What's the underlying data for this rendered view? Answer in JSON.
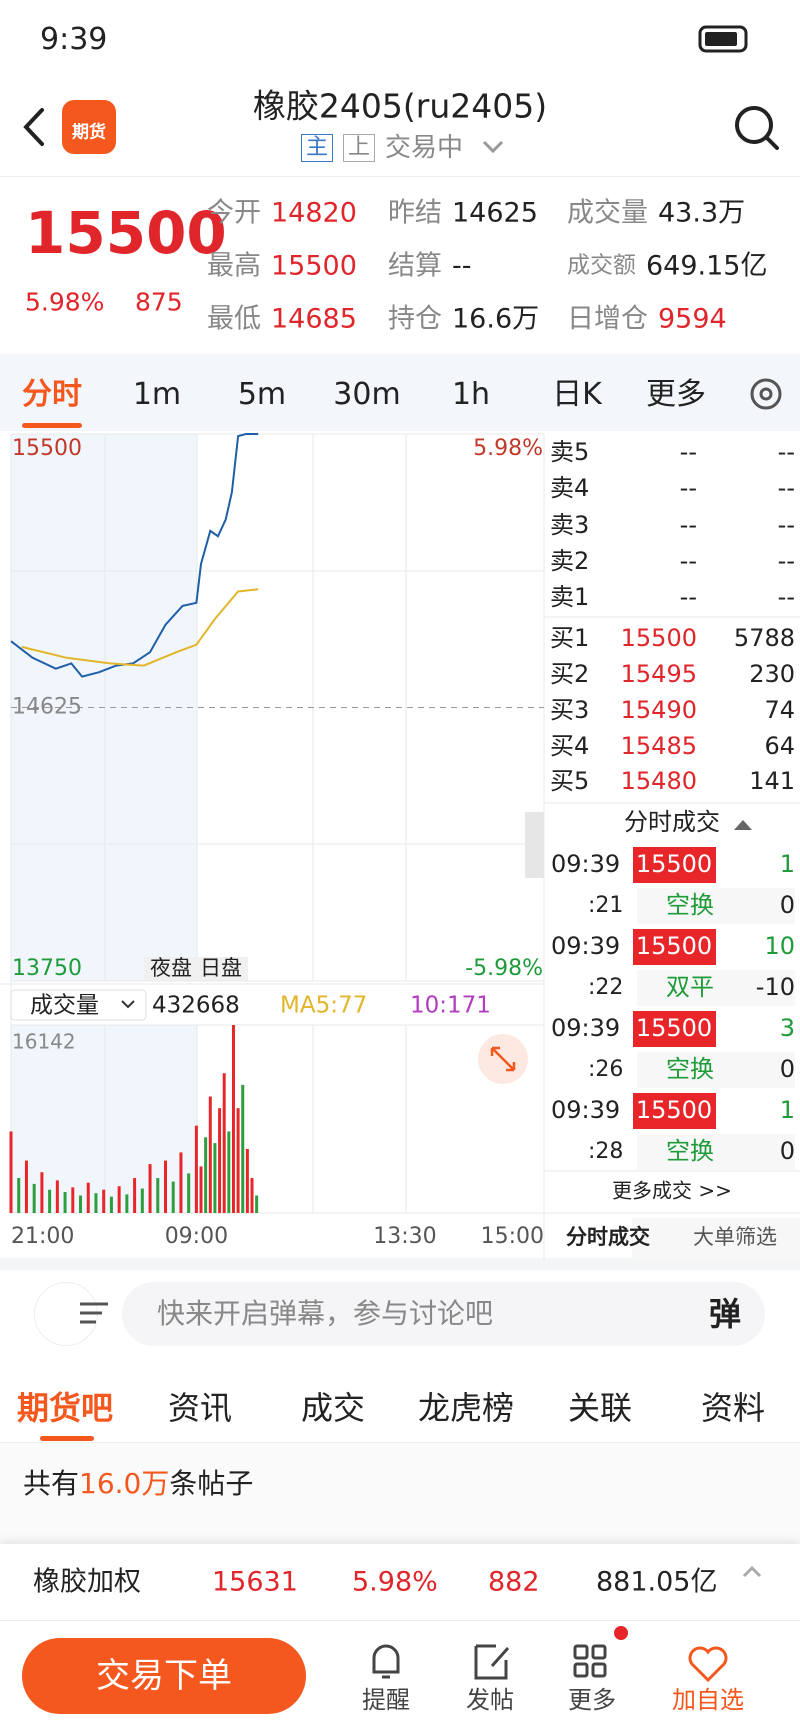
{
  "status_bar": {
    "time": "9:39"
  },
  "header": {
    "logo": "期货",
    "title": "橡胶2405(ru2405)",
    "tags": [
      "主",
      "上"
    ],
    "status": "交易中"
  },
  "quote": {
    "price": "15500",
    "change_pct": "5.98%",
    "change": "875",
    "stats": [
      [
        "今开",
        "14820"
      ],
      [
        "昨结",
        "14625"
      ],
      [
        "成交量",
        "43.3万"
      ],
      [
        "最高",
        "15500"
      ],
      [
        "结算",
        "--"
      ],
      [
        "成交额",
        "649.15亿"
      ],
      [
        "最低",
        "14685"
      ],
      [
        "持仓",
        "16.6万"
      ],
      [
        "日增仓",
        "9594"
      ]
    ]
  },
  "period_tabs": [
    "分时",
    "1m",
    "5m",
    "30m",
    "1h",
    "日K",
    "更多"
  ],
  "chart_data": [
    {
      "type": "line",
      "series": [
        {
          "color": "#1f5fa6",
          "x": [
            0,
            14,
            29,
            39,
            46,
            57,
            68,
            79,
            90,
            100,
            111,
            120,
            123,
            129,
            134,
            139,
            143,
            147,
            152,
            160
          ],
          "values": [
            14837,
            14784,
            14749,
            14766,
            14724,
            14738,
            14759,
            14766,
            14802,
            14890,
            14950,
            14960,
            15084,
            15190,
            15173,
            15226,
            15314,
            15493,
            15500,
            15500
          ]
        },
        {
          "color": "#e3b52a",
          "x": [
            7,
            36,
            64,
            86,
            107,
            120,
            132,
            147,
            160
          ],
          "values": [
            14819,
            14784,
            14766,
            14759,
            14802,
            14826,
            14908,
            14996,
            15003
          ]
        }
      ],
      "xlim": [
        0,
        345
      ],
      "ylim": [
        13750,
        15500
      ],
      "yticks": [
        13750,
        14625,
        15500
      ],
      "y2lim": [
        -5.98,
        5.98
      ],
      "y2ticks": [
        {
          "value": -5.98,
          "label": "-5.98%"
        },
        {
          "value": 5.98,
          "label": "5.98%"
        }
      ],
      "annotations": [
        "夜盘",
        "日盘"
      ]
    },
    {
      "type": "bar",
      "x": [
        0,
        5,
        10,
        15,
        20,
        25,
        30,
        35,
        40,
        45,
        50,
        55,
        60,
        65,
        70,
        75,
        80,
        85,
        90,
        95,
        100,
        105,
        110,
        115,
        120,
        123,
        126,
        129,
        132,
        135,
        138,
        141,
        144,
        147,
        150,
        153,
        156,
        159
      ],
      "values": [
        7000,
        3000,
        4500,
        2500,
        3500,
        2000,
        2800,
        1800,
        2200,
        1500,
        2600,
        1700,
        2000,
        1400,
        2300,
        1600,
        3000,
        2100,
        4200,
        3000,
        4500,
        2700,
        5200,
        3400,
        7500,
        4000,
        6500,
        10000,
        6000,
        9000,
        12000,
        7000,
        16142,
        9000,
        11000,
        5500,
        3000,
        1500
      ],
      "colors": [
        "#e8262a",
        "#2e9d3e",
        "#e8262a",
        "#2e9d3e",
        "#e8262a",
        "#2e9d3e",
        "#e8262a",
        "#2e9d3e",
        "#e8262a",
        "#2e9d3e",
        "#e8262a",
        "#2e9d3e",
        "#e8262a",
        "#2e9d3e",
        "#e8262a",
        "#2e9d3e",
        "#e8262a",
        "#2e9d3e",
        "#e8262a",
        "#2e9d3e",
        "#e8262a",
        "#2e9d3e",
        "#e8262a",
        "#2e9d3e",
        "#e8262a",
        "#e8262a",
        "#2e9d3e",
        "#e8262a",
        "#2e9d3e",
        "#e8262a",
        "#e8262a",
        "#2e9d3e",
        "#e8262a",
        "#e8262a",
        "#2e9d3e",
        "#e8262a",
        "#e8262a",
        "#2e9d3e"
      ],
      "xlim": [
        0,
        345
      ],
      "ylim": [
        0,
        16142
      ],
      "yticks": [
        16142
      ],
      "xticks": [
        {
          "value": 0,
          "label": "21:00"
        },
        {
          "value": 120,
          "label": "09:00"
        },
        {
          "value": 255,
          "label": "13:30"
        },
        {
          "value": 345,
          "label": "15:00"
        }
      ]
    }
  ],
  "volume_header": {
    "indicator": "成交量",
    "total": "432668",
    "ma5": "MA5:77",
    "ma10": "10:171"
  },
  "order_book": {
    "asks": [
      [
        "卖5",
        "--",
        "--"
      ],
      [
        "卖4",
        "--",
        "--"
      ],
      [
        "卖3",
        "--",
        "--"
      ],
      [
        "卖2",
        "--",
        "--"
      ],
      [
        "卖1",
        "--",
        "--"
      ]
    ],
    "bids": [
      [
        "买1",
        "15500",
        "5788"
      ],
      [
        "买2",
        "15495",
        "230"
      ],
      [
        "买3",
        "15490",
        "74"
      ],
      [
        "买4",
        "15485",
        "64"
      ],
      [
        "买5",
        "15480",
        "141"
      ]
    ]
  },
  "trades": {
    "title": "分时成交",
    "rows": [
      {
        "time": "09:39",
        "second": ":21",
        "price": "15500",
        "volume": "1",
        "kind": "空换",
        "change": "0"
      },
      {
        "time": "09:39",
        "second": ":22",
        "price": "15500",
        "volume": "10",
        "kind": "双平",
        "change": "-10"
      },
      {
        "time": "09:39",
        "second": ":26",
        "price": "15500",
        "volume": "3",
        "kind": "空换",
        "change": "0"
      },
      {
        "time": "09:39",
        "second": ":28",
        "price": "15500",
        "volume": "1",
        "kind": "空换",
        "change": "0"
      }
    ],
    "more": "更多成交 >>",
    "tabs": [
      "分时成交",
      "大单筛选"
    ]
  },
  "comment": {
    "placeholder": "快来开启弹幕，参与讨论吧",
    "button": "弹"
  },
  "section_tabs": [
    "期货吧",
    "资讯",
    "成交",
    "龙虎榜",
    "关联",
    "资料"
  ],
  "posts": {
    "prefix": "共有",
    "count": "16.0万",
    "suffix": "条帖子"
  },
  "index_bar": {
    "name": "橡胶加权",
    "price": "15631",
    "change_pct": "5.98%",
    "change": "882",
    "amount": "881.05亿"
  },
  "nav": {
    "trade": "交易下单",
    "items": [
      "提醒",
      "发帖",
      "更多",
      "加自选"
    ]
  }
}
